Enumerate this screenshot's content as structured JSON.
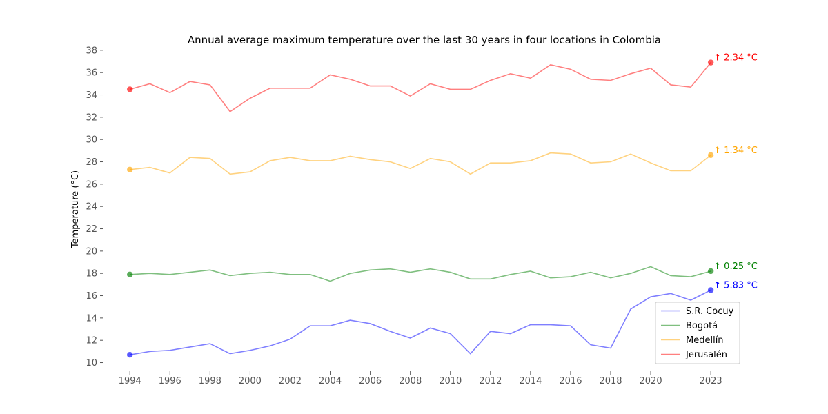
{
  "chart_data": {
    "type": "line",
    "title": "Annual average maximum temperature over the last 30 years in four locations in Colombia",
    "xlabel": "",
    "ylabel": "Temperature (°C)",
    "xlim": [
      1993.2,
      2024.2
    ],
    "ylim": [
      9.6,
      38.3
    ],
    "x_ticks": [
      1994,
      1996,
      1998,
      2000,
      2002,
      2004,
      2006,
      2008,
      2010,
      2012,
      2014,
      2016,
      2018,
      2020,
      2023
    ],
    "y_ticks": [
      10,
      12,
      14,
      16,
      18,
      20,
      22,
      24,
      26,
      28,
      30,
      32,
      34,
      36,
      38
    ],
    "grid": false,
    "legend_position": "bottom-right",
    "x": [
      1994,
      1995,
      1996,
      1997,
      1998,
      1999,
      2000,
      2001,
      2002,
      2003,
      2004,
      2005,
      2006,
      2007,
      2008,
      2009,
      2010,
      2011,
      2012,
      2013,
      2014,
      2015,
      2016,
      2017,
      2018,
      2019,
      2020,
      2021,
      2022,
      2023
    ],
    "series": [
      {
        "name": "S.R. Cocuy",
        "color": "#0000ff",
        "values": [
          10.7,
          11.0,
          11.1,
          11.4,
          11.7,
          10.8,
          11.1,
          11.5,
          12.1,
          13.3,
          13.3,
          13.8,
          13.5,
          12.8,
          12.2,
          13.1,
          12.6,
          10.8,
          12.8,
          12.6,
          13.4,
          13.4,
          13.3,
          11.6,
          11.3,
          14.8,
          15.9,
          16.2,
          15.6,
          16.5
        ],
        "annotation": "↑  5.83 °C"
      },
      {
        "name": "Bogotá",
        "color": "#008000",
        "values": [
          17.9,
          18.0,
          17.9,
          18.1,
          18.3,
          17.8,
          18.0,
          18.1,
          17.9,
          17.9,
          17.3,
          18.0,
          18.3,
          18.4,
          18.1,
          18.4,
          18.1,
          17.5,
          17.5,
          17.9,
          18.2,
          17.6,
          17.7,
          18.1,
          17.6,
          18.0,
          18.6,
          17.8,
          17.7,
          18.2
        ],
        "annotation": "↑  0.25 °C"
      },
      {
        "name": "Medellín",
        "color": "#ffa500",
        "values": [
          27.3,
          27.5,
          27.0,
          28.4,
          28.3,
          26.9,
          27.1,
          28.1,
          28.4,
          28.1,
          28.1,
          28.5,
          28.2,
          28.0,
          27.4,
          28.3,
          28.0,
          26.9,
          27.9,
          27.9,
          28.1,
          28.8,
          28.7,
          27.9,
          28.0,
          28.7,
          27.9,
          27.2,
          27.2,
          28.6
        ],
        "annotation": "↑  1.34 °C"
      },
      {
        "name": "Jerusalén",
        "color": "#ff0000",
        "values": [
          34.5,
          35.0,
          34.2,
          35.2,
          34.9,
          32.5,
          33.7,
          34.6,
          34.6,
          34.6,
          35.8,
          35.4,
          34.8,
          34.8,
          33.9,
          35.0,
          34.5,
          34.5,
          35.3,
          35.9,
          35.5,
          36.7,
          36.3,
          35.4,
          35.3,
          35.9,
          36.4,
          34.9,
          34.7,
          36.9
        ],
        "annotation": "↑  2.34 °C"
      }
    ]
  }
}
